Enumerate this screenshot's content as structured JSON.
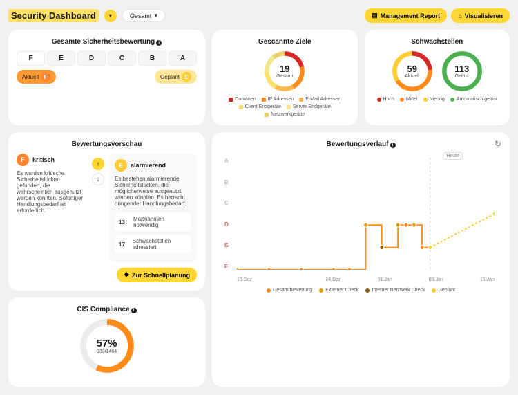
{
  "header": {
    "title": "Security Dashboard",
    "filter_selected": "Gesamt",
    "buttons": {
      "report": "Management Report",
      "visualize": "Visualisieren"
    }
  },
  "colors": {
    "bg": "#f1f1ef",
    "card": "#ffffff",
    "yellow": "#ffd633",
    "yellow_light": "#ffe699",
    "orange": "#ff8c1a",
    "orange_light": "#ffb84d",
    "red": "#d62828",
    "green": "#4caf50",
    "text": "#1a1a1a",
    "muted": "#888888"
  },
  "rating": {
    "title": "Gesamte Sicherheitsbewertung",
    "grades": [
      "F",
      "E",
      "D",
      "C",
      "B",
      "A"
    ],
    "active": "F",
    "current": {
      "label": "Aktuell",
      "grade": "F",
      "pill_bg": "#ff9933",
      "badge_bg": "#ff8533"
    },
    "planned": {
      "label": "Geplant",
      "grade": "E",
      "pill_bg": "#ffe699",
      "badge_bg": "#ffcc33"
    }
  },
  "targets": {
    "title": "Gescannte Ziele",
    "value": 19,
    "sublabel": "Gesamt",
    "segments": [
      {
        "label": "Domänen",
        "color": "#d62828",
        "value": 4
      },
      {
        "label": "IP Adressen",
        "color": "#ff8c1a",
        "value": 4
      },
      {
        "label": "E-Mail Adressen",
        "color": "#ffb84d",
        "value": 3
      },
      {
        "label": "Client Endgeräte",
        "color": "#ffe066",
        "value": 3
      },
      {
        "label": "Server Endgeräte",
        "color": "#f4e68a",
        "value": 3
      },
      {
        "label": "Netzwerkgeräte",
        "color": "#e8d16a",
        "value": 2
      }
    ]
  },
  "vulns": {
    "title": "Schwachstellen",
    "current": {
      "value": 59,
      "sublabel": "Aktuell",
      "segments": [
        {
          "label": "Hoch",
          "color": "#d62828",
          "value": 14
        },
        {
          "label": "Mittel",
          "color": "#ff8c1a",
          "value": 25
        },
        {
          "label": "Niedrig",
          "color": "#ffcc33",
          "value": 20
        }
      ]
    },
    "solved": {
      "value": 113,
      "sublabel": "Gelöst",
      "segments": [
        {
          "label": "Automatisch gelöst",
          "color": "#4caf50",
          "value": 113
        }
      ]
    }
  },
  "preview": {
    "title": "Bewertungsvorschau",
    "left": {
      "grade": "F",
      "grade_bg": "#ff8533",
      "heading": "kritisch",
      "text": "Es wurden kritische Sicherheitslücken gefunden, die wahrscheinlich ausgenutzt werden könnten. Sofortiger Handlungsbedarf ist erforderlich."
    },
    "right": {
      "grade": "E",
      "grade_bg": "#ffcc33",
      "heading": "alarmierend",
      "text": "Es bestehen alarmierende Sicherheitslücken, die möglicherweise ausgenutzt werden könnten. Es herrscht dringender Handlungsbedarf.",
      "actions": [
        {
          "count": 13,
          "label": "Maßnahmen notwendig"
        },
        {
          "count": 17,
          "label": "Schwachstellen adressiert"
        }
      ]
    },
    "quick_button": "Zur Schnellplanung"
  },
  "cis": {
    "title": "CIS Compliance",
    "percent": 57,
    "percent_label": "57%",
    "fraction": "833/1464",
    "ring": {
      "done_color": "#ff8c1a",
      "rest_color": "#ececec"
    }
  },
  "history": {
    "title": "Bewertungsverlauf",
    "today_label": "Heute",
    "y_grades": [
      "A",
      "B",
      "C",
      "D",
      "E",
      "F"
    ],
    "x_ticks": [
      "16.Dez",
      "",
      "24.Dez",
      "01.Jan",
      "08.Jan",
      "16.Jan"
    ],
    "series": [
      {
        "name": "Gesamtbewertung",
        "color": "#ff8c1a",
        "type": "step",
        "dot_color": "#ff8c1a",
        "points": [
          [
            0,
            5
          ],
          [
            2,
            5
          ],
          [
            4,
            5
          ],
          [
            6,
            5
          ],
          [
            7,
            5
          ],
          [
            8,
            3
          ],
          [
            9,
            4
          ],
          [
            10,
            3
          ],
          [
            10.5,
            3
          ],
          [
            11,
            3
          ],
          [
            11.5,
            4
          ],
          [
            12,
            4
          ]
        ]
      },
      {
        "name": "Externer Check",
        "color": "#d9a300",
        "type": "dots",
        "dot_color": "#d9a300",
        "points": [
          [
            8,
            3
          ],
          [
            10,
            3
          ],
          [
            11,
            3
          ]
        ]
      },
      {
        "name": "Interner Netzwerk Check",
        "color": "#8a5a00",
        "type": "dots",
        "dot_color": "#8a5a00",
        "points": [
          [
            9,
            4
          ]
        ]
      },
      {
        "name": "Geplant",
        "color": "#ffcc33",
        "type": "dashed",
        "dot_color": "#ffcc33",
        "points": [
          [
            12,
            4
          ],
          [
            16,
            2.5
          ]
        ]
      }
    ],
    "legend": [
      {
        "label": "Gesamtbewertung",
        "color": "#ff8c1a"
      },
      {
        "label": "Externer Check",
        "color": "#d9a300"
      },
      {
        "label": "Interner Netzwerk Check",
        "color": "#8a5a00"
      },
      {
        "label": "Geplant",
        "color": "#ffcc33"
      }
    ],
    "today_x": 12
  }
}
